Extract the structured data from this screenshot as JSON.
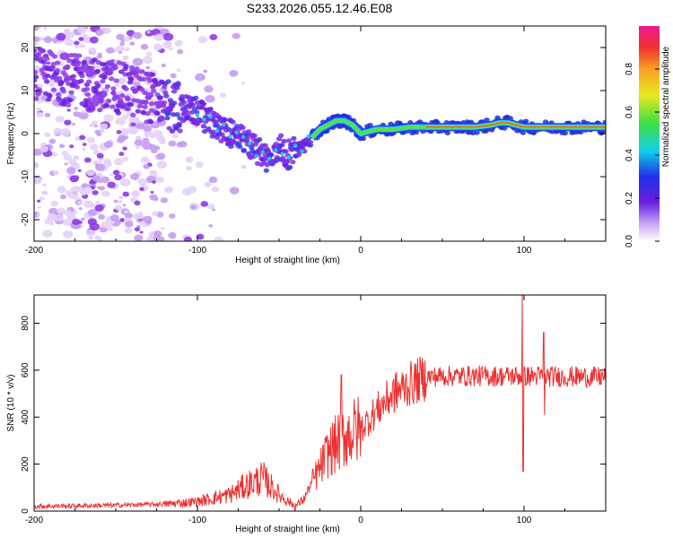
{
  "title": "S233.2026.055.12.46.E08",
  "chart_data": [
    {
      "type": "heatmap",
      "name": "spectrogram",
      "xlabel": "Height of straight line (km)",
      "ylabel": "Frequency (Hz)",
      "xlim": [
        -200,
        150
      ],
      "ylim": [
        -25,
        25
      ],
      "xticks": [
        -200,
        -100,
        0,
        100
      ],
      "yticks": [
        -20,
        -10,
        0,
        10,
        20
      ],
      "ridge_frequency": {
        "x": [
          -200,
          -140,
          -120,
          -100,
          -90,
          -80,
          -70,
          -60,
          -55,
          -50,
          -45,
          -40,
          -35,
          -30,
          -25,
          -20,
          -15,
          -10,
          -5,
          0,
          10,
          20,
          30,
          40,
          50,
          60,
          70,
          80,
          85,
          90,
          95,
          100,
          110,
          120,
          130,
          140,
          150
        ],
        "y": [
          14,
          10,
          7,
          5,
          2,
          0,
          -2,
          -5,
          -7,
          -3,
          -5,
          -4,
          -3,
          -1,
          1,
          2,
          3,
          3,
          2,
          0,
          1,
          1,
          1.5,
          1.5,
          1.5,
          1.5,
          1.5,
          2,
          2.5,
          2.5,
          2,
          1.5,
          1.5,
          1.5,
          1.5,
          1.5,
          1.5
        ]
      },
      "colorbar": {
        "label": "Normalized spectral amplitude",
        "range": [
          0,
          1
        ],
        "ticks": [
          "0.0",
          "0.2",
          "0.4",
          "0.6",
          "0.8"
        ]
      }
    },
    {
      "type": "line",
      "name": "snr",
      "xlabel": "Height of straight line (km)",
      "ylabel": "SNR (10 * v/v)",
      "xlim": [
        -200,
        150
      ],
      "ylim": [
        0,
        920
      ],
      "xticks": [
        -200,
        -100,
        0,
        100
      ],
      "yticks": [
        0,
        200,
        400,
        600,
        800
      ],
      "color": "#ee3030",
      "trend": {
        "x": [
          -200,
          -150,
          -120,
          -100,
          -80,
          -70,
          -60,
          -50,
          -40,
          -35,
          -30,
          -25,
          -20,
          -10,
          0,
          10,
          20,
          30,
          40,
          50,
          100,
          150
        ],
        "y": [
          20,
          25,
          30,
          40,
          70,
          110,
          140,
          70,
          20,
          50,
          120,
          180,
          250,
          320,
          350,
          430,
          500,
          540,
          570,
          575,
          575,
          570
        ]
      },
      "spikes": [
        {
          "x": -12,
          "y": 580
        },
        {
          "x": 99,
          "y": 920
        },
        {
          "x": 99.5,
          "y": 170
        },
        {
          "x": 112,
          "y": 760
        },
        {
          "x": 112.5,
          "y": 410
        }
      ]
    }
  ]
}
